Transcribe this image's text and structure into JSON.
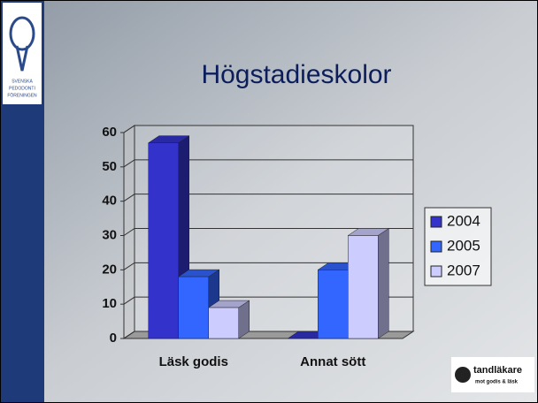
{
  "chart_data": {
    "type": "bar3d",
    "title": "Högstadieskolor",
    "categories": [
      "Läsk godis",
      "Annat sött"
    ],
    "series": [
      {
        "name": "2004",
        "color": "#3333cc",
        "values": [
          57,
          0
        ]
      },
      {
        "name": "2005",
        "color": "#3366ff",
        "values": [
          18,
          20
        ]
      },
      {
        "name": "2007",
        "color": "#ccccff",
        "values": [
          9,
          30
        ]
      }
    ],
    "ylim": [
      0,
      60
    ],
    "yticks": [
      0,
      10,
      20,
      30,
      40,
      50,
      60
    ],
    "grid": true,
    "legend": "right"
  },
  "logos": {
    "society": [
      "SVENSKA",
      "PEDODONTI",
      "FÖRENINGEN"
    ],
    "campaign": [
      "tandläkare",
      "mot godis & läsk"
    ]
  }
}
